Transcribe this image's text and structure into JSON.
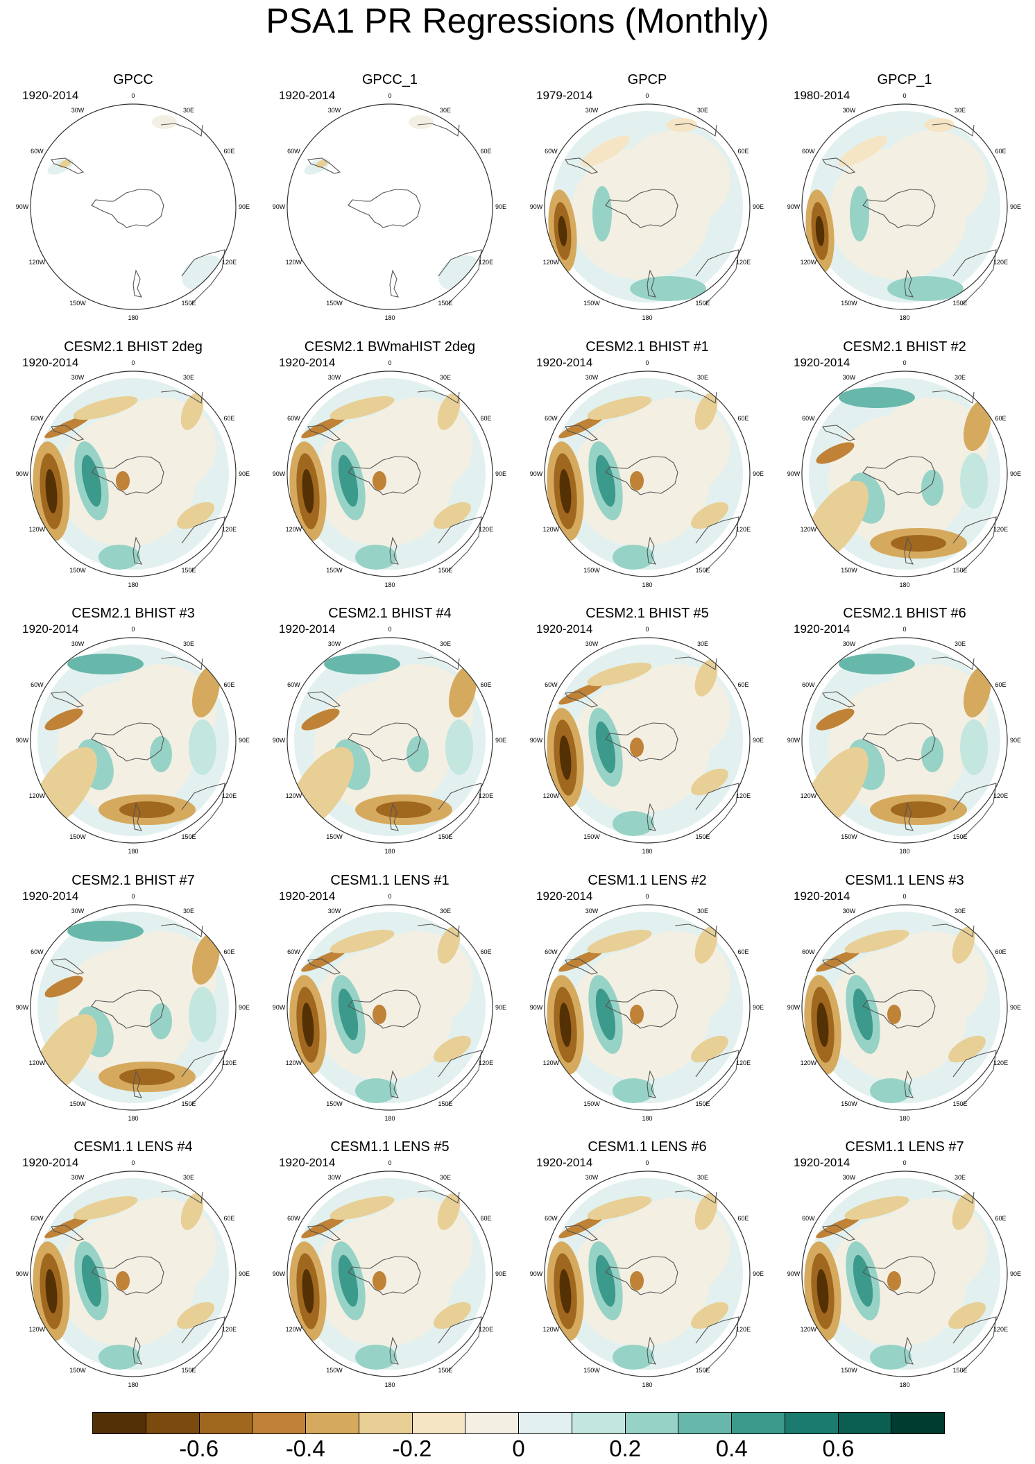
{
  "title": "PSA1 PR Regressions (Monthly)",
  "lon_labels": [
    "0",
    "30E",
    "60E",
    "90E",
    "120E",
    "150E",
    "180",
    "150W",
    "120W",
    "90W",
    "60W",
    "30W"
  ],
  "panels": [
    {
      "title": "GPCC",
      "years": "1920-2014",
      "field": "gpcc"
    },
    {
      "title": "GPCC_1",
      "years": "1920-2014",
      "field": "gpcc"
    },
    {
      "title": "GPCP",
      "years": "1979-2014",
      "field": "obs"
    },
    {
      "title": "GPCP_1",
      "years": "1980-2014",
      "field": "obs"
    },
    {
      "title": "CESM2.1 BHIST 2deg",
      "years": "1920-2014",
      "field": "model"
    },
    {
      "title": "CESM2.1 BWmaHIST 2deg",
      "years": "1920-2014",
      "field": "model"
    },
    {
      "title": "CESM2.1 BHIST #1",
      "years": "1920-2014",
      "field": "model"
    },
    {
      "title": "CESM2.1 BHIST #2",
      "years": "1920-2014",
      "field": "alt"
    },
    {
      "title": "CESM2.1 BHIST #3",
      "years": "1920-2014",
      "field": "alt"
    },
    {
      "title": "CESM2.1 BHIST #4",
      "years": "1920-2014",
      "field": "alt"
    },
    {
      "title": "CESM2.1 BHIST #5",
      "years": "1920-2014",
      "field": "model"
    },
    {
      "title": "CESM2.1 BHIST #6",
      "years": "1920-2014",
      "field": "alt"
    },
    {
      "title": "CESM2.1 BHIST #7",
      "years": "1920-2014",
      "field": "alt"
    },
    {
      "title": "CESM1.1 LENS #1",
      "years": "1920-2014",
      "field": "model"
    },
    {
      "title": "CESM1.1 LENS #2",
      "years": "1920-2014",
      "field": "model"
    },
    {
      "title": "CESM1.1 LENS #3",
      "years": "1920-2014",
      "field": "model"
    },
    {
      "title": "CESM1.1 LENS #4",
      "years": "1920-2014",
      "field": "model"
    },
    {
      "title": "CESM1.1 LENS #5",
      "years": "1920-2014",
      "field": "model"
    },
    {
      "title": "CESM1.1 LENS #6",
      "years": "1920-2014",
      "field": "model"
    },
    {
      "title": "CESM1.1 LENS #7",
      "years": "1920-2014",
      "field": "model"
    }
  ],
  "colorbar": {
    "colors": [
      "#543005",
      "#7a4a0e",
      "#a0671f",
      "#bf8237",
      "#d6aa5e",
      "#e8cf96",
      "#f5e5c4",
      "#f3efe3",
      "#e2f1ef",
      "#c3e6df",
      "#97d2c6",
      "#67b8aa",
      "#3c9a8c",
      "#1a7b6e",
      "#0b5e52",
      "#003c30"
    ],
    "tick_labels": [
      "-0.6",
      "-0.4",
      "-0.2",
      "0",
      "0.2",
      "0.4",
      "0.6"
    ]
  }
}
